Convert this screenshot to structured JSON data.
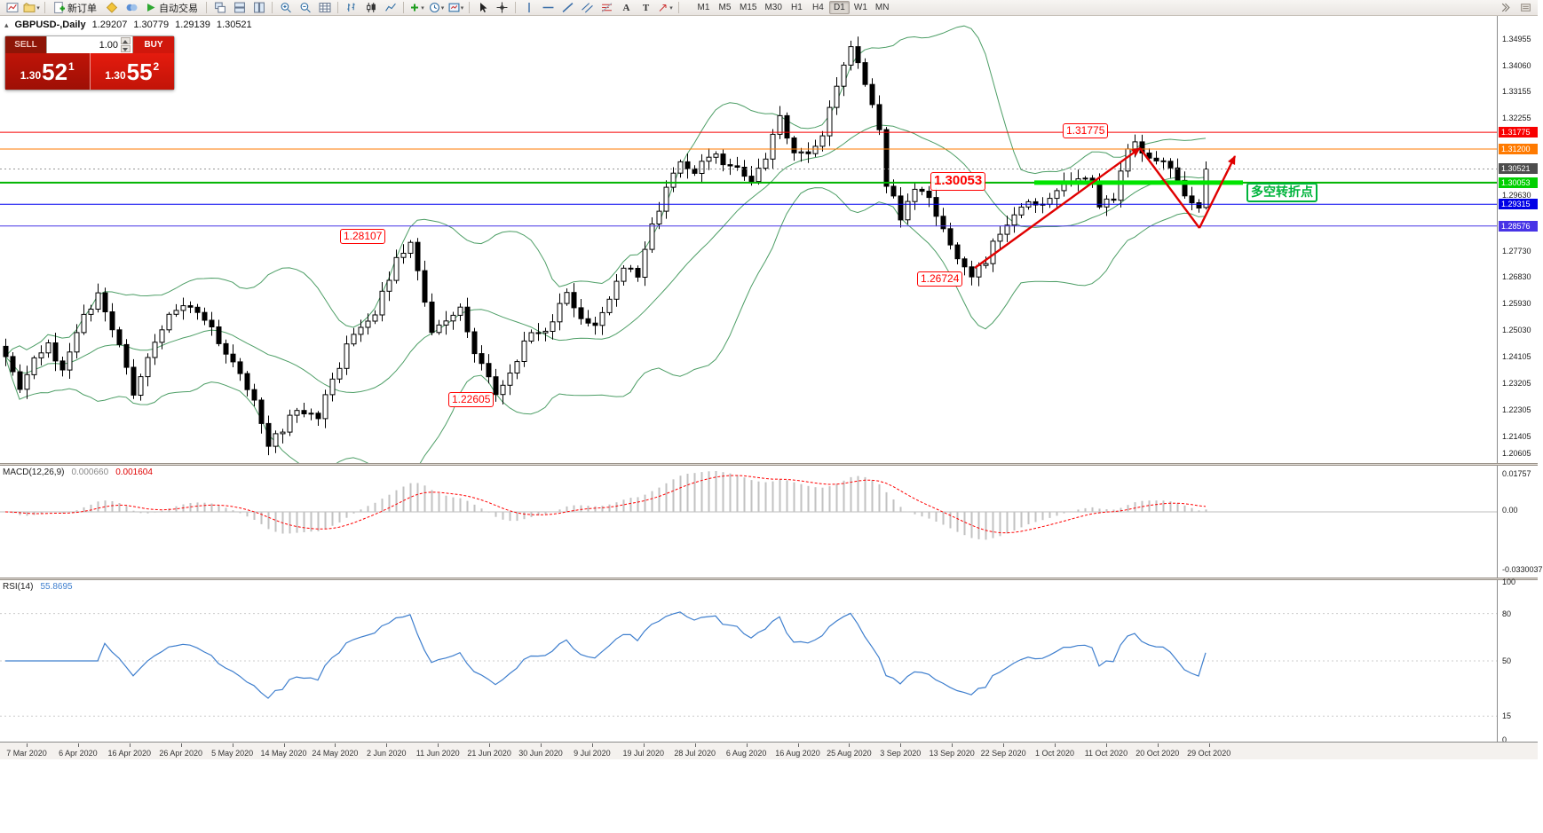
{
  "toolbar": {
    "new_order_label": "新订单",
    "autotrading_label": "自动交易",
    "text_tool_glyph": "A",
    "label_tool_glyph": "T",
    "timeframes": [
      "M1",
      "M5",
      "M15",
      "M30",
      "H1",
      "H4",
      "D1",
      "W1",
      "MN"
    ],
    "active_timeframe": "D1"
  },
  "chart_title": {
    "symbol_period": "GBPUSD-,Daily",
    "open": "1.29207",
    "high": "1.30779",
    "low": "1.29139",
    "close": "1.30521"
  },
  "trade_panel": {
    "sell_label": "SELL",
    "buy_label": "BUY",
    "volume": "1.00",
    "sell_big": "1.30",
    "sell_pips": "52",
    "sell_frac": "1",
    "buy_big": "1.30",
    "buy_pips": "55",
    "buy_frac": "2"
  },
  "indicators": {
    "macd_label": "MACD(12,26,9)",
    "macd_value_main": "0.000660",
    "macd_value_signal": "0.001604",
    "macd_axis_top": "0.01757",
    "macd_axis_zero": "0.00",
    "macd_axis_bottom": "-0.0330037",
    "rsi_label": "RSI(14)",
    "rsi_value": "55.8695",
    "rsi_axis": [
      "100",
      "80",
      "50",
      "15",
      "0"
    ],
    "rsi_levels": [
      80,
      50,
      15
    ]
  },
  "time_axis_labels": [
    "7 Mar 2020",
    "6 Apr 2020",
    "16 Apr 2020",
    "26 Apr 2020",
    "5 May 2020",
    "14 May 2020",
    "24 May 2020",
    "2 Jun 2020",
    "11 Jun 2020",
    "21 Jun 2020",
    "30 Jun 2020",
    "9 Jul 2020",
    "19 Jul 2020",
    "28 Jul 2020",
    "6 Aug 2020",
    "16 Aug 2020",
    "25 Aug 2020",
    "3 Sep 2020",
    "13 Sep 2020",
    "22 Sep 2020",
    "1 Oct 2020",
    "11 Oct 2020",
    "20 Oct 2020",
    "29 Oct 2020"
  ],
  "chart_data": {
    "type": "candlestick",
    "symbol": "GBPUSD-",
    "period": "Daily",
    "ohlc_current": {
      "open": 1.29207,
      "high": 1.30779,
      "low": 1.29139,
      "close": 1.30521
    },
    "y_min_price": 1.20605,
    "y_ticks": [
      1.34955,
      1.3406,
      1.33155,
      1.32255,
      1.2963,
      1.2773,
      1.2683,
      1.2593,
      1.2503,
      1.24105,
      1.23205,
      1.22305,
      1.21405,
      1.20605
    ],
    "levels": [
      {
        "price": 1.31775,
        "color": "#f80000",
        "width": 1,
        "style": "solid",
        "box": "#f80000"
      },
      {
        "price": 1.312,
        "color": "#ff7a00",
        "width": 1,
        "style": "solid",
        "box": "#ff7a00"
      },
      {
        "price": 1.30521,
        "color": "#9a9a9a",
        "width": 1,
        "style": "dotted",
        "box": "#4d4d4d",
        "current": true
      },
      {
        "price": 1.30053,
        "color": "#00b400",
        "width": 2,
        "style": "solid",
        "box": "#00cf00"
      },
      {
        "price": 1.29315,
        "color": "#0000f0",
        "width": 1,
        "style": "solid",
        "box": "#0000e6"
      },
      {
        "price": 1.28576,
        "color": "#4733e6",
        "width": 1,
        "style": "solid",
        "box": "#4733e6"
      }
    ],
    "thick_segment": {
      "price": 1.30053,
      "x_from": 1165,
      "x_to": 1400,
      "color": "#00e400",
      "width": 5
    },
    "annotations": [
      {
        "text": "1.31775",
        "x": 1197,
        "y": 139,
        "color": "#ff0000",
        "size": 12
      },
      {
        "text": "1.30053",
        "x": 1048,
        "y": 194,
        "color": "#ff0000",
        "size": 15,
        "bold": true
      },
      {
        "text": "1.28107",
        "x": 383,
        "y": 258,
        "color": "#ff0000",
        "size": 12
      },
      {
        "text": "1.26724",
        "x": 1033,
        "y": 306,
        "color": "#ff0000",
        "size": 12
      },
      {
        "text": "1.22605",
        "x": 505,
        "y": 442,
        "color": "#ff0000",
        "size": 12
      },
      {
        "text": "多空转折点",
        "x": 1404,
        "y": 206,
        "color": "#00b43c",
        "size": 14,
        "bold": true,
        "bw": 2
      }
    ],
    "arrows": {
      "color": "#e00000",
      "segments": [
        {
          "points": [
            [
              1098,
              302
            ],
            [
              1284,
              167
            ]
          ],
          "head": true
        },
        {
          "points": [
            [
              1284,
              167
            ],
            [
              1351,
              257
            ]
          ],
          "head": false
        },
        {
          "points": [
            [
              1351,
              257
            ],
            [
              1391,
              176
            ]
          ],
          "head": true
        }
      ]
    },
    "bollinger": {
      "period": 20,
      "deviation": 2,
      "color": "#4d9e66"
    },
    "candle_up_fill": "#ffffff",
    "candle_down_fill": "#000000",
    "candle_stroke": "#000000",
    "bar_count": 170,
    "waypoints": [
      [
        0,
        1.2415
      ],
      [
        2,
        1.2305
      ],
      [
        4,
        1.24
      ],
      [
        6,
        1.2445
      ],
      [
        8,
        1.236
      ],
      [
        11,
        1.254
      ],
      [
        13,
        1.2625
      ],
      [
        15,
        1.251
      ],
      [
        18,
        1.2295
      ],
      [
        20,
        1.242
      ],
      [
        23,
        1.256
      ],
      [
        26,
        1.2585
      ],
      [
        29,
        1.2505
      ],
      [
        31,
        1.243
      ],
      [
        33,
        1.2355
      ],
      [
        35,
        1.227
      ],
      [
        37,
        1.211
      ],
      [
        39,
        1.2165
      ],
      [
        41,
        1.223
      ],
      [
        44,
        1.2215
      ],
      [
        46,
        1.233
      ],
      [
        49,
        1.25
      ],
      [
        52,
        1.2565
      ],
      [
        55,
        1.274
      ],
      [
        57,
        1.2795
      ],
      [
        59,
        1.2595
      ],
      [
        60,
        1.248
      ],
      [
        62,
        1.2545
      ],
      [
        64,
        1.257
      ],
      [
        66,
        1.2435
      ],
      [
        68,
        1.234
      ],
      [
        69,
        1.227
      ],
      [
        71,
        1.234
      ],
      [
        73,
        1.247
      ],
      [
        76,
        1.251
      ],
      [
        79,
        1.2615
      ],
      [
        81,
        1.255
      ],
      [
        83,
        1.2525
      ],
      [
        85,
        1.262
      ],
      [
        87,
        1.2725
      ],
      [
        89,
        1.268
      ],
      [
        91,
        1.285
      ],
      [
        93,
        1.298
      ],
      [
        95,
        1.3085
      ],
      [
        97,
        1.3045
      ],
      [
        99,
        1.3105
      ],
      [
        101,
        1.307
      ],
      [
        103,
        1.3055
      ],
      [
        105,
        1.2995
      ],
      [
        107,
        1.309
      ],
      [
        109,
        1.3245
      ],
      [
        111,
        1.3095
      ],
      [
        113,
        1.311
      ],
      [
        115,
        1.318
      ],
      [
        117,
        1.332
      ],
      [
        119,
        1.3475
      ],
      [
        120,
        1.34
      ],
      [
        121,
        1.3355
      ],
      [
        123,
        1.319
      ],
      [
        124,
        1.3005
      ],
      [
        126,
        1.2885
      ],
      [
        128,
        1.2975
      ],
      [
        130,
        1.2955
      ],
      [
        132,
        1.2855
      ],
      [
        134,
        1.2755
      ],
      [
        136,
        1.269
      ],
      [
        138,
        1.2745
      ],
      [
        140,
        1.284
      ],
      [
        142,
        1.2905
      ],
      [
        144,
        1.2935
      ],
      [
        146,
        1.294
      ],
      [
        148,
        1.2975
      ],
      [
        150,
        1.301
      ],
      [
        152,
        1.3035
      ],
      [
        153,
        1.2995
      ],
      [
        154,
        1.2925
      ],
      [
        155,
        1.2945
      ],
      [
        156,
        1.2955
      ],
      [
        157,
        1.3045
      ],
      [
        158,
        1.3125
      ],
      [
        159,
        1.3155
      ],
      [
        160,
        1.312
      ],
      [
        161,
        1.3105
      ],
      [
        162,
        1.308
      ],
      [
        163,
        1.3065
      ],
      [
        164,
        1.304
      ],
      [
        165,
        1.3
      ],
      [
        166,
        1.2975
      ],
      [
        167,
        1.293
      ],
      [
        168,
        1.292
      ],
      [
        169,
        1.30521
      ]
    ]
  }
}
